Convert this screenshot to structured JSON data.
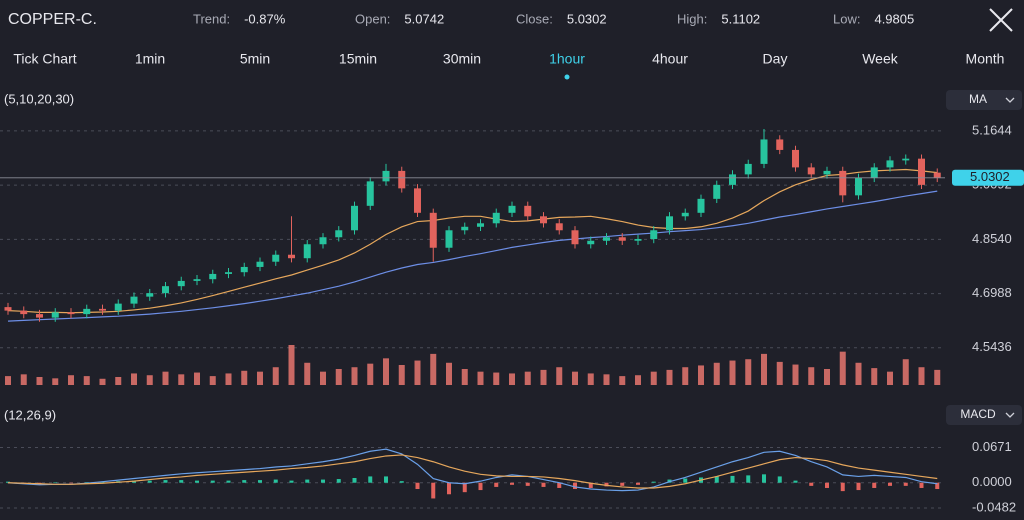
{
  "header": {
    "symbol": "COPPER-C.",
    "stats": [
      {
        "label": "Trend:",
        "value": "-0.87%"
      },
      {
        "label": "Open:",
        "value": "5.0742"
      },
      {
        "label": "Close:",
        "value": "5.0302"
      },
      {
        "label": "High:",
        "value": "5.1102"
      },
      {
        "label": "Low:",
        "value": "4.9805"
      }
    ]
  },
  "tabs": [
    "Tick Chart",
    "1min",
    "5min",
    "15min",
    "30min",
    "1hour",
    "4hour",
    "Day",
    "Week",
    "Month"
  ],
  "active_tab": 5,
  "chart_data": [
    {
      "type": "candlestick",
      "indicator": "(5,10,20,30)",
      "button": "MA",
      "up_color": "#27c49e",
      "down_color": "#e2635d",
      "ylim": [
        4.48,
        5.21
      ],
      "yticks": [
        5.1644,
        5.0092,
        {
          "value": 4.854,
          "label": "4.8540"
        },
        4.6988,
        4.5436
      ],
      "grid": true,
      "last_price": 5.0302,
      "open": [
        4.66,
        4.65,
        4.64,
        4.63,
        4.645,
        4.64,
        4.655,
        4.65,
        4.67,
        4.69,
        4.7,
        4.72,
        4.735,
        4.74,
        4.755,
        4.76,
        4.775,
        4.79,
        4.81,
        4.8,
        4.84,
        4.86,
        4.88,
        4.95,
        5.02,
        5.05,
        5.0,
        4.93,
        4.83,
        4.88,
        4.89,
        4.9,
        4.93,
        4.95,
        4.92,
        4.9,
        4.88,
        4.84,
        4.85,
        4.86,
        4.85,
        4.855,
        4.88,
        4.92,
        4.93,
        4.97,
        5.01,
        5.04,
        5.07,
        5.14,
        5.11,
        5.06,
        5.04,
        5.05,
        4.98,
        5.03,
        5.06,
        5.08,
        5.085,
        5.045
      ],
      "high": [
        4.672,
        4.662,
        4.652,
        4.657,
        4.657,
        4.667,
        4.667,
        4.682,
        4.702,
        4.712,
        4.732,
        4.747,
        4.752,
        4.767,
        4.772,
        4.787,
        4.802,
        4.822,
        4.92,
        4.852,
        4.872,
        4.892,
        4.962,
        5.032,
        5.07,
        5.062,
        5.012,
        4.942,
        4.892,
        4.902,
        4.912,
        4.942,
        4.962,
        4.962,
        4.932,
        4.912,
        4.892,
        4.862,
        4.872,
        4.872,
        4.867,
        4.892,
        4.932,
        4.942,
        4.982,
        5.022,
        5.052,
        5.082,
        5.17,
        5.152,
        5.122,
        5.072,
        5.062,
        5.062,
        5.042,
        5.072,
        5.092,
        5.097,
        5.097,
        5.057
      ],
      "low": [
        4.638,
        4.628,
        4.618,
        4.618,
        4.628,
        4.628,
        4.638,
        4.638,
        4.658,
        4.678,
        4.688,
        4.708,
        4.723,
        4.728,
        4.743,
        4.748,
        4.763,
        4.778,
        4.788,
        4.788,
        4.828,
        4.848,
        4.868,
        4.938,
        5.008,
        4.988,
        4.918,
        4.79,
        4.818,
        4.868,
        4.878,
        4.888,
        4.918,
        4.908,
        4.888,
        4.868,
        4.828,
        4.828,
        4.838,
        4.838,
        4.838,
        4.843,
        4.868,
        4.908,
        4.918,
        4.958,
        4.998,
        5.028,
        5.058,
        5.098,
        5.048,
        5.028,
        5.028,
        4.96,
        4.968,
        5.018,
        5.048,
        5.068,
        4.998,
        5.018
      ],
      "close": [
        4.65,
        4.64,
        4.63,
        4.645,
        4.64,
        4.655,
        4.65,
        4.67,
        4.69,
        4.7,
        4.72,
        4.735,
        4.74,
        4.755,
        4.76,
        4.775,
        4.79,
        4.81,
        4.8,
        4.84,
        4.86,
        4.88,
        4.95,
        5.02,
        5.05,
        5.0,
        4.93,
        4.83,
        4.88,
        4.89,
        4.9,
        4.93,
        4.95,
        4.92,
        4.9,
        4.88,
        4.84,
        4.85,
        4.86,
        4.85,
        4.855,
        4.88,
        4.92,
        4.93,
        4.97,
        5.01,
        5.04,
        5.07,
        5.14,
        5.11,
        5.06,
        5.04,
        5.05,
        4.98,
        5.03,
        5.06,
        5.08,
        5.085,
        5.01,
        5.0302
      ],
      "ma": [
        {
          "color": "#e6a75c",
          "values": [
            4.65,
            4.648,
            4.645,
            4.645,
            4.644,
            4.645,
            4.646,
            4.648,
            4.652,
            4.657,
            4.664,
            4.672,
            4.682,
            4.693,
            4.705,
            4.717,
            4.729,
            4.741,
            4.752,
            4.766,
            4.78,
            4.795,
            4.815,
            4.84,
            4.868,
            4.89,
            4.905,
            4.908,
            4.915,
            4.92,
            4.92,
            4.912,
            4.905,
            4.907,
            4.912,
            4.917,
            4.918,
            4.92,
            4.913,
            4.905,
            4.895,
            4.888,
            4.885,
            4.885,
            4.89,
            4.9,
            4.915,
            4.935,
            4.965,
            4.99,
            5.01,
            5.025,
            5.037,
            5.04,
            5.046,
            5.05,
            5.052,
            5.054,
            5.05,
            5.045
          ]
        },
        {
          "color": "#6d8ee6",
          "values": [
            4.62,
            4.622,
            4.624,
            4.626,
            4.628,
            4.63,
            4.632,
            4.634,
            4.637,
            4.64,
            4.644,
            4.648,
            4.653,
            4.658,
            4.664,
            4.67,
            4.677,
            4.684,
            4.692,
            4.7,
            4.71,
            4.72,
            4.732,
            4.746,
            4.76,
            4.772,
            4.782,
            4.788,
            4.796,
            4.805,
            4.813,
            4.822,
            4.831,
            4.838,
            4.845,
            4.851,
            4.855,
            4.859,
            4.862,
            4.866,
            4.869,
            4.872,
            4.876,
            4.879,
            4.882,
            4.887,
            4.893,
            4.9,
            4.909,
            4.918,
            4.925,
            4.933,
            4.941,
            4.948,
            4.955,
            4.962,
            4.97,
            4.978,
            4.985,
            4.992
          ]
        }
      ],
      "volume_color": "#e8776f",
      "volume": [
        20,
        24,
        18,
        15,
        22,
        20,
        14,
        18,
        26,
        22,
        30,
        24,
        28,
        20,
        26,
        32,
        30,
        40,
        90,
        50,
        30,
        36,
        40,
        48,
        60,
        45,
        55,
        70,
        50,
        36,
        30,
        28,
        26,
        30,
        34,
        40,
        30,
        26,
        24,
        20,
        22,
        30,
        34,
        40,
        44,
        50,
        55,
        58,
        70,
        52,
        46,
        40,
        36,
        75,
        50,
        38,
        30,
        58,
        40,
        34
      ]
    },
    {
      "type": "macd",
      "indicator": "(12,26,9)",
      "button": "MACD",
      "ylim": [
        -0.052,
        0.07
      ],
      "yticks": [
        0.0671,
        {
          "value": 0,
          "label": "0.0000"
        },
        -0.0482
      ],
      "grid": true,
      "up_color": "#27c49e",
      "down_color": "#e2635d",
      "histogram": [
        0.002,
        -0.002,
        -0.003,
        0.001,
        -0.001,
        0.001,
        0.002,
        0.003,
        0.004,
        0.004,
        0.005,
        0.005,
        0.004,
        0.004,
        0.004,
        0.005,
        0.005,
        0.006,
        0.004,
        0.006,
        0.006,
        0.007,
        0.009,
        0.012,
        0.012,
        0.003,
        -0.012,
        -0.03,
        -0.022,
        -0.018,
        -0.014,
        -0.008,
        -0.004,
        -0.006,
        -0.008,
        -0.01,
        -0.012,
        -0.01,
        -0.007,
        -0.006,
        -0.004,
        0.002,
        0.006,
        0.008,
        0.01,
        0.012,
        0.013,
        0.014,
        0.016,
        0.012,
        0.004,
        -0.006,
        -0.01,
        -0.016,
        -0.014,
        -0.01,
        -0.006,
        -0.006,
        -0.01,
        -0.012
      ],
      "series": [
        {
          "color": "#6aa0e8",
          "values": [
            0.0,
            -0.002,
            -0.004,
            -0.003,
            -0.003,
            -0.001,
            0.002,
            0.005,
            0.008,
            0.011,
            0.014,
            0.017,
            0.019,
            0.021,
            0.023,
            0.025,
            0.027,
            0.03,
            0.032,
            0.036,
            0.04,
            0.045,
            0.052,
            0.06,
            0.064,
            0.055,
            0.035,
            0.008,
            0.0,
            -0.002,
            0.003,
            0.01,
            0.015,
            0.012,
            0.006,
            0.0,
            -0.008,
            -0.012,
            -0.014,
            -0.015,
            -0.014,
            -0.008,
            0.002,
            0.01,
            0.02,
            0.03,
            0.04,
            0.048,
            0.058,
            0.06,
            0.052,
            0.04,
            0.03,
            0.015,
            0.012,
            0.014,
            0.012,
            0.01,
            0.002,
            -0.002
          ]
        },
        {
          "color": "#e6a75c",
          "values": [
            0.0,
            -0.001,
            -0.002,
            -0.003,
            -0.003,
            -0.002,
            -0.001,
            0.001,
            0.003,
            0.006,
            0.009,
            0.011,
            0.014,
            0.016,
            0.018,
            0.02,
            0.022,
            0.024,
            0.027,
            0.029,
            0.032,
            0.036,
            0.04,
            0.046,
            0.051,
            0.053,
            0.048,
            0.04,
            0.03,
            0.022,
            0.016,
            0.013,
            0.012,
            0.012,
            0.011,
            0.008,
            0.004,
            -0.001,
            -0.005,
            -0.008,
            -0.01,
            -0.01,
            -0.007,
            -0.002,
            0.005,
            0.012,
            0.02,
            0.028,
            0.036,
            0.044,
            0.048,
            0.046,
            0.042,
            0.034,
            0.028,
            0.024,
            0.02,
            0.016,
            0.012,
            0.008
          ]
        }
      ]
    }
  ]
}
